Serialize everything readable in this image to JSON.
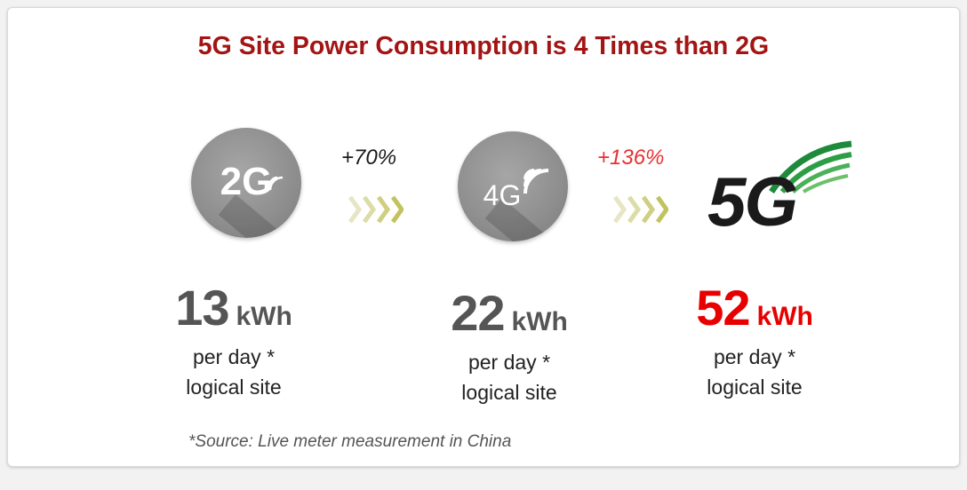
{
  "title": "5G Site Power Consumption is 4 Times than 2G",
  "badges": [
    {
      "label": "2G",
      "icon": "signal-waves-icon"
    },
    {
      "label": "4G",
      "icon": "signal-waves-icon"
    }
  ],
  "logo_5g": {
    "label": "5G",
    "icon": "5g-logo-arcs",
    "colors": [
      "#1a1a1a",
      "#1f8a3c",
      "#5cb85c"
    ]
  },
  "increases": [
    {
      "text": "+70%",
      "color": "#1a1a1a"
    },
    {
      "text": "+136%",
      "color": "#e83030"
    }
  ],
  "stats": [
    {
      "value": "13",
      "unit": "kWh",
      "line1": "per day *",
      "line2": "logical site",
      "color": "#555555"
    },
    {
      "value": "22",
      "unit": "kWh",
      "line1": "per day *",
      "line2": "logical site",
      "color": "#555555"
    },
    {
      "value": "52",
      "unit": "kWh",
      "line1": "per day *",
      "line2": "logical site",
      "color": "#e80000"
    }
  ],
  "source": "*Source: Live meter measurement in China",
  "colors": {
    "title": "#a31414",
    "chevron": "#d8d89a"
  }
}
